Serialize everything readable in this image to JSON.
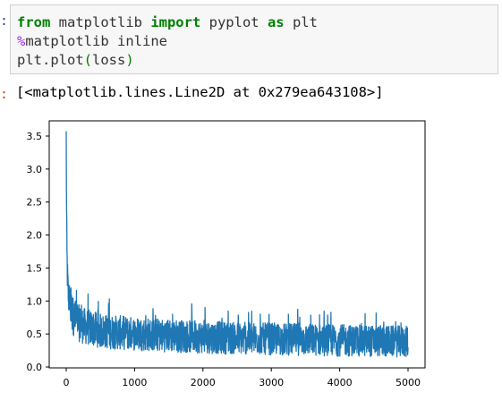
{
  "code_cell": {
    "line1": {
      "kw_from": "from",
      "mod": " matplotlib ",
      "kw_import": "import",
      "rest": " pyplot ",
      "kw_as": "as",
      "end": " plt"
    },
    "line2": {
      "magic": "%",
      "rest": "matplotlib inline"
    },
    "line3": {
      "pre": "plt.plot",
      "open": "(",
      "arg": "loss",
      "close": ")"
    }
  },
  "output": {
    "repr": "[<matplotlib.lines.Line2D at 0x279ea643108>]"
  },
  "chart_data": {
    "type": "line",
    "x_range": [
      0,
      5000
    ],
    "ylim": [
      0.0,
      3.5
    ],
    "xticks": [
      "0",
      "1000",
      "2000",
      "3000",
      "4000",
      "5000"
    ],
    "yticks": [
      "0.0",
      "0.5",
      "1.0",
      "1.5",
      "2.0",
      "2.5",
      "3.0",
      "3.5"
    ],
    "series": [
      {
        "color": "#1f77b4",
        "points_x": [
          0,
          5,
          10,
          20,
          30,
          50,
          70,
          100,
          150,
          200,
          300,
          400,
          500,
          700,
          1000,
          1500,
          2000,
          2500,
          3000,
          3500,
          4000,
          4500,
          5000
        ],
        "points_y": [
          3.48,
          2.4,
          1.7,
          1.3,
          1.1,
          0.95,
          0.85,
          0.75,
          0.68,
          0.62,
          0.58,
          0.55,
          0.52,
          0.5,
          0.48,
          0.45,
          0.43,
          0.41,
          0.4,
          0.39,
          0.38,
          0.37,
          0.36
        ],
        "noise_amplitude": 0.38
      }
    ]
  }
}
